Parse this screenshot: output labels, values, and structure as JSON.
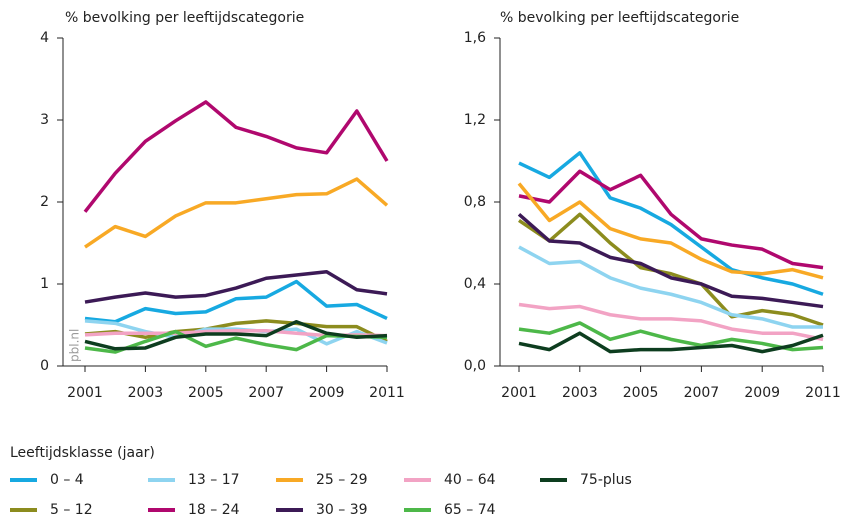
{
  "chart_data": [
    {
      "type": "line",
      "title": "% bevolking per leeftijdscategorie",
      "x": [
        2001,
        2002,
        2003,
        2004,
        2005,
        2006,
        2007,
        2008,
        2009,
        2010,
        2011
      ],
      "xlim": [
        2001,
        2011
      ],
      "xticks": [
        2001,
        2003,
        2005,
        2007,
        2009,
        2011
      ],
      "ylim": [
        0,
        4
      ],
      "yticks": [
        0,
        1,
        2,
        3,
        4
      ],
      "watermark": "pbl.nl",
      "series": [
        {
          "name": "0 – 4",
          "color": "#17a9e1",
          "values": [
            0.58,
            0.54,
            0.7,
            0.64,
            0.66,
            0.82,
            0.84,
            1.03,
            0.73,
            0.75,
            0.58
          ]
        },
        {
          "name": "5 – 12",
          "color": "#8c8c1e",
          "values": [
            0.39,
            0.42,
            0.35,
            0.42,
            0.45,
            0.52,
            0.55,
            0.52,
            0.48,
            0.48,
            0.3
          ]
        },
        {
          "name": "13 – 17",
          "color": "#8ed4f0",
          "values": [
            0.55,
            0.52,
            0.42,
            0.35,
            0.45,
            0.45,
            0.42,
            0.45,
            0.27,
            0.42,
            0.28
          ]
        },
        {
          "name": "18 – 24",
          "color": "#b0086e",
          "values": [
            1.88,
            2.35,
            2.74,
            2.99,
            3.22,
            2.91,
            2.8,
            2.66,
            2.6,
            3.11,
            2.5
          ]
        },
        {
          "name": "25 – 29",
          "color": "#f8a925",
          "values": [
            1.45,
            1.7,
            1.58,
            1.83,
            1.99,
            1.99,
            2.04,
            2.09,
            2.1,
            2.28,
            1.96
          ]
        },
        {
          "name": "30 – 39",
          "color": "#3c1a56",
          "values": [
            0.78,
            0.84,
            0.89,
            0.84,
            0.86,
            0.95,
            1.07,
            1.11,
            1.15,
            0.93,
            0.88
          ]
        },
        {
          "name": "40 – 64",
          "color": "#f2a3c4",
          "values": [
            0.38,
            0.4,
            0.4,
            0.4,
            0.42,
            0.43,
            0.43,
            0.4,
            0.37,
            0.38,
            0.37
          ]
        },
        {
          "name": "65 – 74",
          "color": "#4db849",
          "values": [
            0.22,
            0.17,
            0.3,
            0.42,
            0.24,
            0.34,
            0.26,
            0.2,
            0.37,
            0.36,
            0.35
          ]
        },
        {
          "name": "75-plus",
          "color": "#0d3d1f",
          "values": [
            0.3,
            0.21,
            0.22,
            0.35,
            0.39,
            0.39,
            0.37,
            0.54,
            0.4,
            0.35,
            0.37
          ]
        }
      ]
    },
    {
      "type": "line",
      "title": "% bevolking per leeftijdscategorie",
      "x": [
        2001,
        2002,
        2003,
        2004,
        2005,
        2006,
        2007,
        2008,
        2009,
        2010,
        2011
      ],
      "xlim": [
        2001,
        2011
      ],
      "xticks": [
        2001,
        2003,
        2005,
        2007,
        2009,
        2011
      ],
      "ylim": [
        0,
        1.6
      ],
      "yticks": [
        {
          "value": 0,
          "label": "0,0"
        },
        {
          "value": 0.4,
          "label": "0,4"
        },
        {
          "value": 0.8,
          "label": "0,8"
        },
        {
          "value": 1.2,
          "label": "1,2"
        },
        {
          "value": 1.6,
          "label": "1,6"
        }
      ],
      "series": [
        {
          "name": "0 – 4",
          "color": "#17a9e1",
          "values": [
            0.99,
            0.92,
            1.04,
            0.82,
            0.77,
            0.69,
            0.58,
            0.47,
            0.43,
            0.4,
            0.35
          ]
        },
        {
          "name": "5 – 12",
          "color": "#8c8c1e",
          "values": [
            0.71,
            0.61,
            0.74,
            0.6,
            0.48,
            0.45,
            0.4,
            0.24,
            0.27,
            0.25,
            0.2
          ]
        },
        {
          "name": "13 – 17",
          "color": "#8ed4f0",
          "values": [
            0.58,
            0.5,
            0.51,
            0.43,
            0.38,
            0.35,
            0.31,
            0.25,
            0.23,
            0.19,
            0.19
          ]
        },
        {
          "name": "18 – 24",
          "color": "#b0086e",
          "values": [
            0.83,
            0.8,
            0.95,
            0.86,
            0.93,
            0.74,
            0.62,
            0.59,
            0.57,
            0.5,
            0.48
          ]
        },
        {
          "name": "25 – 29",
          "color": "#f8a925",
          "values": [
            0.89,
            0.71,
            0.8,
            0.67,
            0.62,
            0.6,
            0.52,
            0.46,
            0.45,
            0.47,
            0.43
          ]
        },
        {
          "name": "30 – 39",
          "color": "#3c1a56",
          "values": [
            0.74,
            0.61,
            0.6,
            0.53,
            0.5,
            0.43,
            0.4,
            0.34,
            0.33,
            0.31,
            0.29
          ]
        },
        {
          "name": "40 – 64",
          "color": "#f2a3c4",
          "values": [
            0.3,
            0.28,
            0.29,
            0.25,
            0.23,
            0.23,
            0.22,
            0.18,
            0.16,
            0.16,
            0.13
          ]
        },
        {
          "name": "65 – 74",
          "color": "#4db849",
          "values": [
            0.18,
            0.16,
            0.21,
            0.13,
            0.17,
            0.13,
            0.1,
            0.13,
            0.11,
            0.08,
            0.09
          ]
        },
        {
          "name": "75-plus",
          "color": "#0d3d1f",
          "values": [
            0.11,
            0.08,
            0.16,
            0.07,
            0.08,
            0.08,
            0.09,
            0.1,
            0.07,
            0.1,
            0.15
          ]
        }
      ]
    }
  ],
  "legend": {
    "title": "Leeftijdsklasse (jaar)"
  }
}
